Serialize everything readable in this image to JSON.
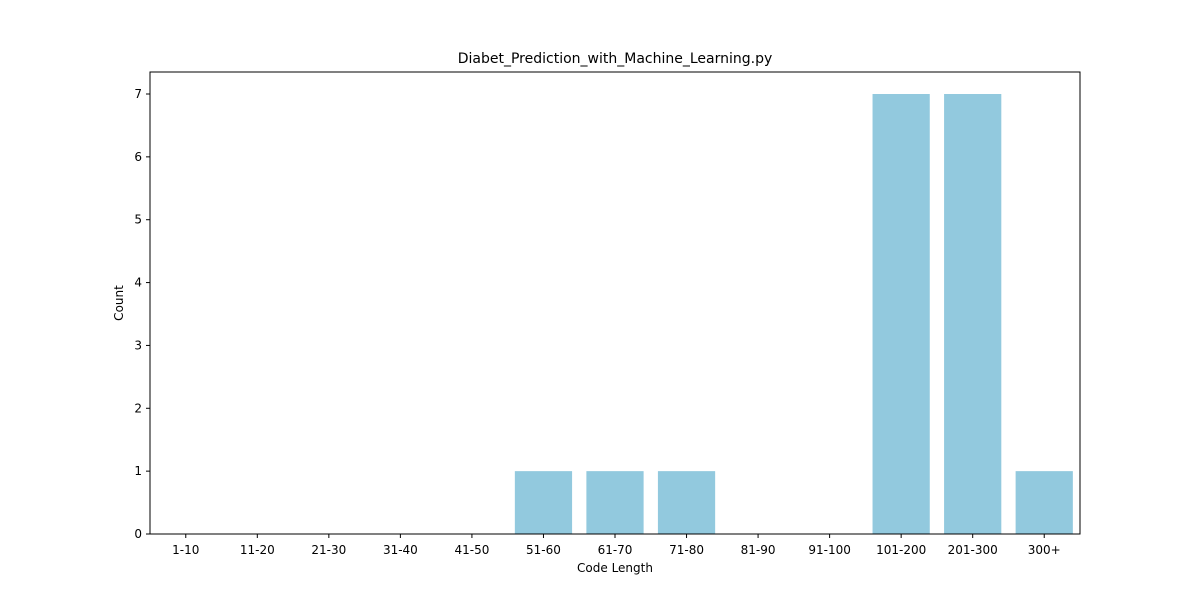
{
  "chart_data": {
    "type": "bar",
    "title": "Diabet_Prediction_with_Machine_Learning.py",
    "xlabel": "Code Length",
    "ylabel": "Count",
    "categories": [
      "1-10",
      "11-20",
      "21-30",
      "31-40",
      "41-50",
      "51-60",
      "61-70",
      "71-80",
      "81-90",
      "91-100",
      "101-200",
      "201-300",
      "300+"
    ],
    "values": [
      0,
      0,
      0,
      0,
      0,
      1,
      1,
      1,
      0,
      0,
      7,
      7,
      1
    ],
    "ylim": [
      0,
      7.35
    ],
    "yticks": [
      0,
      1,
      2,
      3,
      4,
      5,
      6,
      7
    ],
    "grid": false,
    "legend": "none",
    "bar_color": "#92c9de"
  }
}
